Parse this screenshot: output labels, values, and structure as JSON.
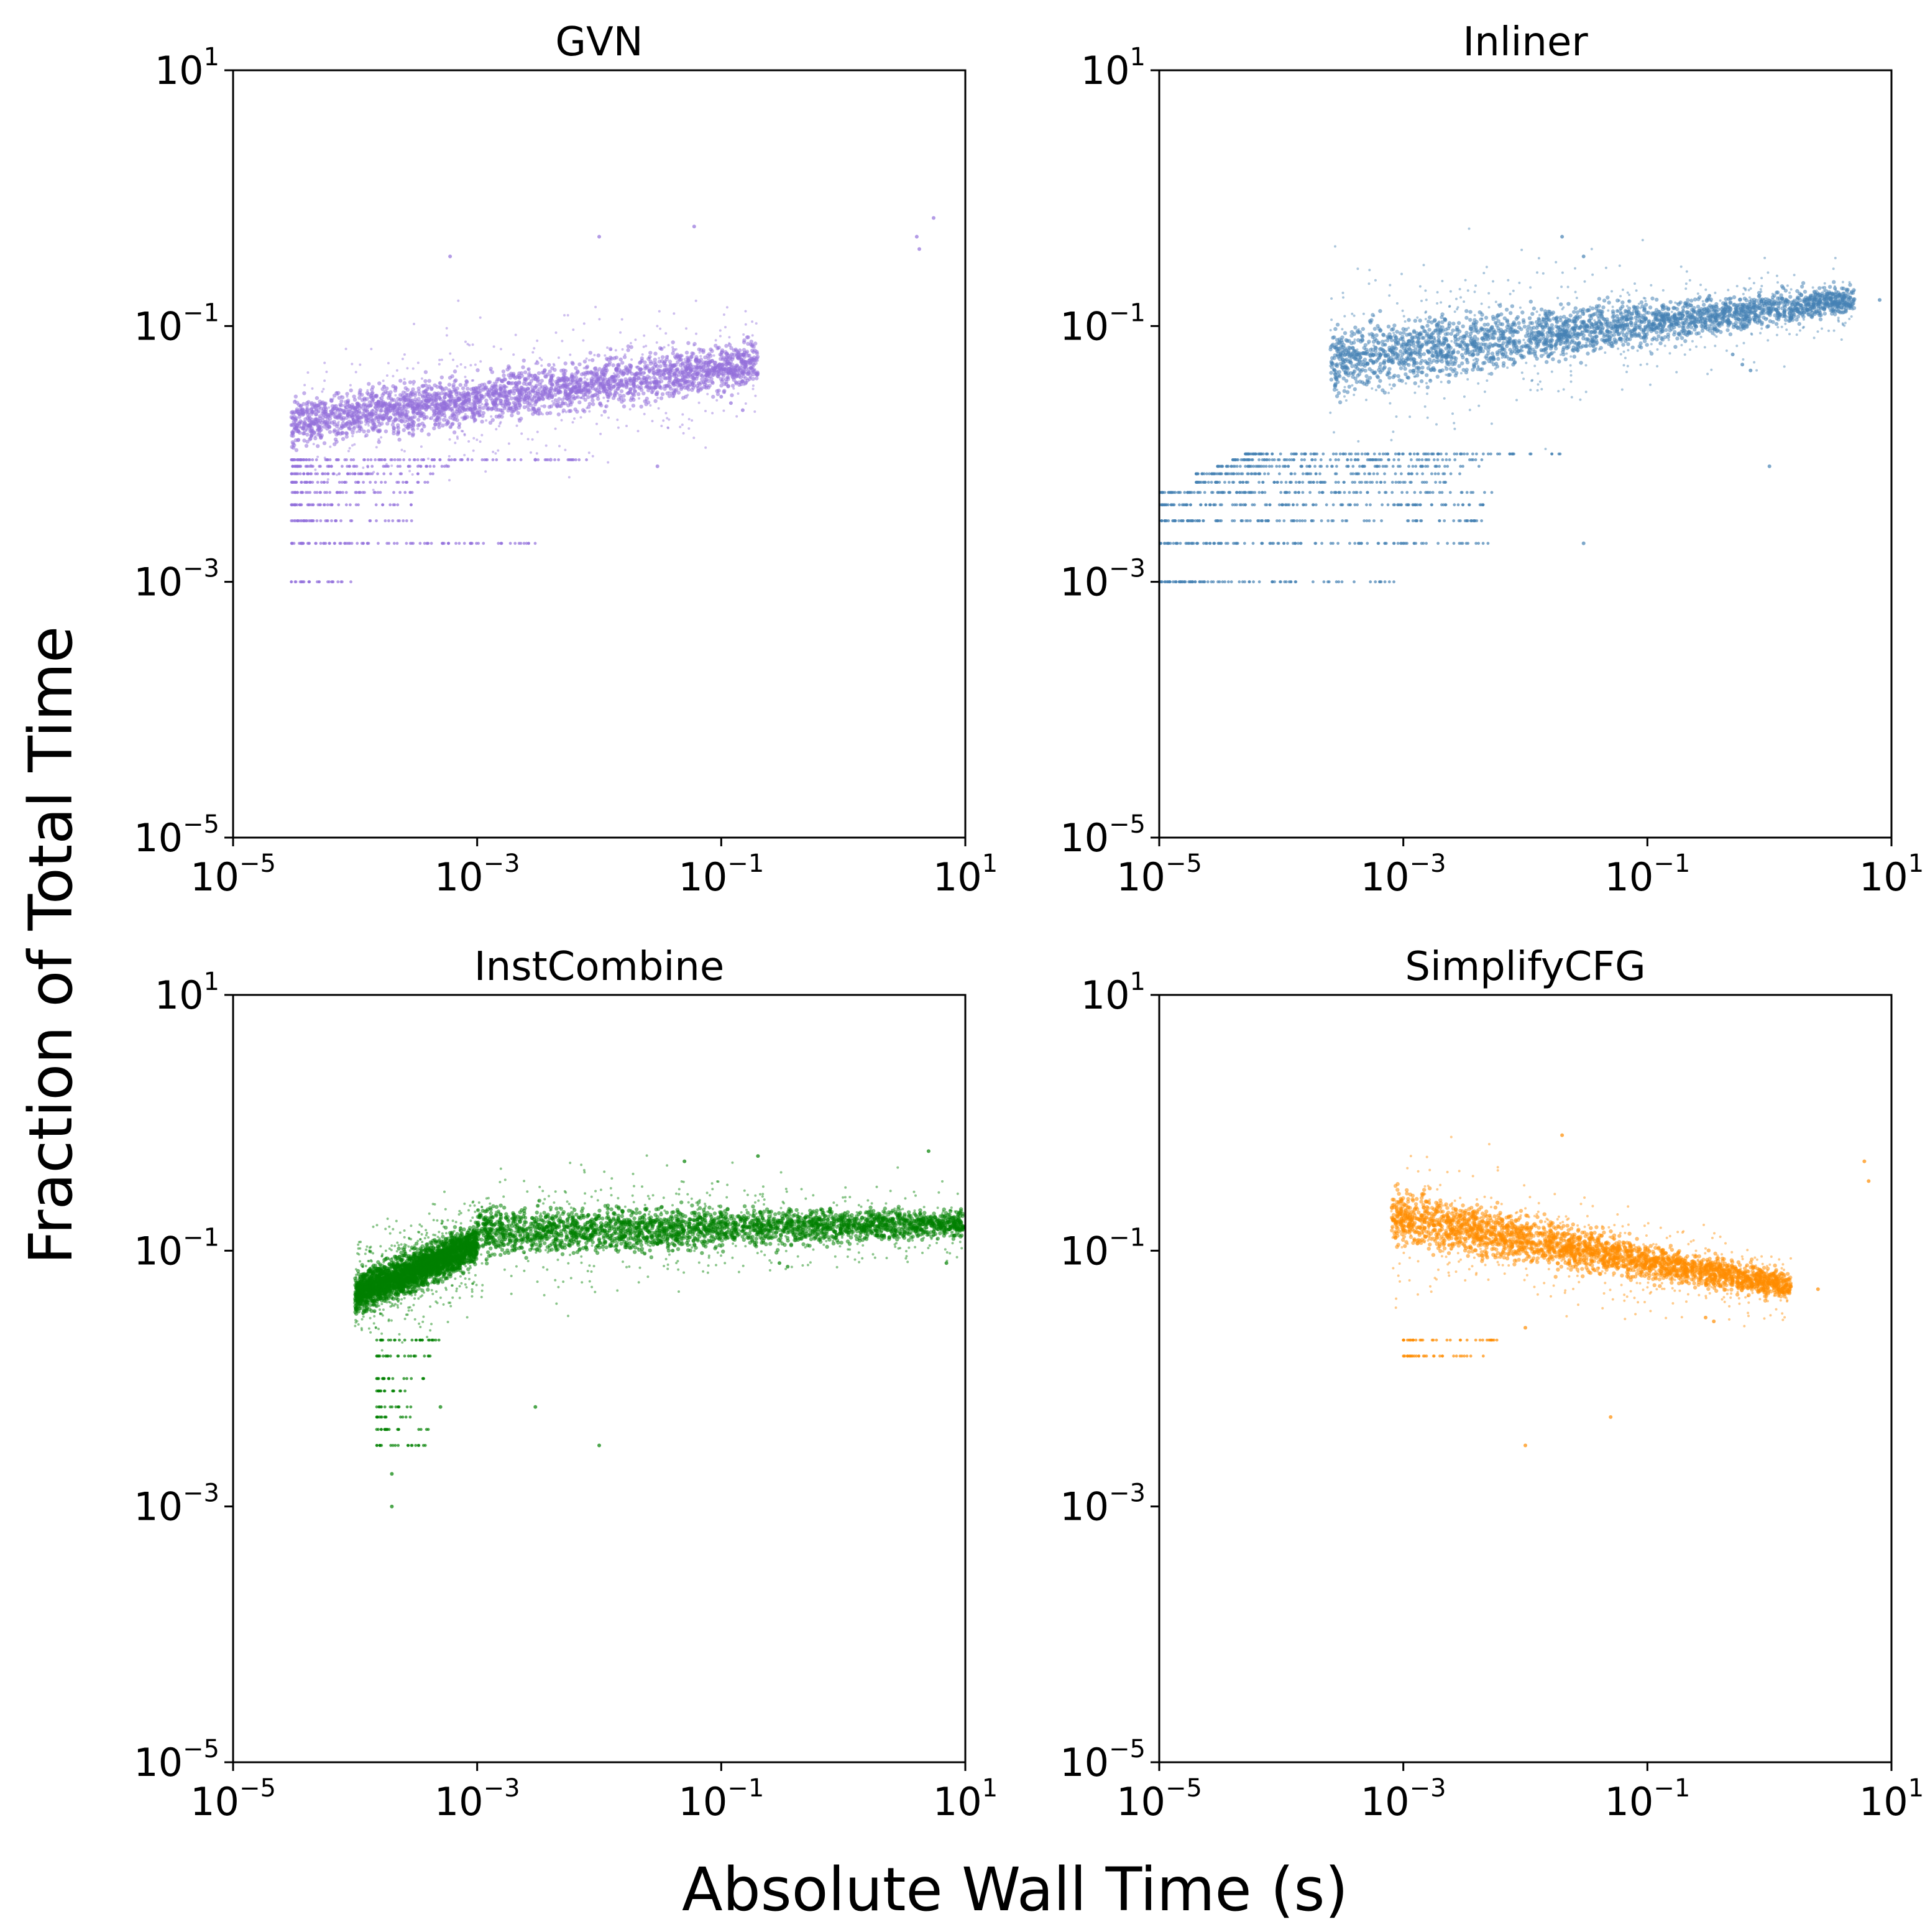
{
  "figure": {
    "xlabel": "Absolute Wall Time (s)",
    "ylabel": "Fraction of Total Time"
  },
  "chart_data": [
    {
      "type": "scatter",
      "title": "GVN",
      "color": "#9370DB",
      "xscale": "log",
      "yscale": "log",
      "xlim": [
        1e-05,
        10
      ],
      "ylim": [
        1e-05,
        10
      ],
      "xticks": [
        {
          "base": "10",
          "exp": "−5"
        },
        {
          "base": "10",
          "exp": "−3"
        },
        {
          "base": "10",
          "exp": "−1"
        },
        {
          "base": "10",
          "exp": "1"
        }
      ],
      "yticks": [
        {
          "base": "10",
          "exp": "−5"
        },
        {
          "base": "10",
          "exp": "−3"
        },
        {
          "base": "10",
          "exp": "−1"
        },
        {
          "base": "10",
          "exp": "1"
        }
      ],
      "clusters": [
        {
          "x_range": [
            3e-05,
            0.2
          ],
          "y_start": [
            0.01,
            0.03
          ],
          "y_end": [
            0.03,
            0.09
          ]
        }
      ],
      "bands": [
        {
          "y": 0.001,
          "x_range": [
            3e-05,
            0.0001
          ]
        },
        {
          "y": 0.002,
          "x_range": [
            3e-05,
            0.003
          ]
        },
        {
          "y": 0.003,
          "x_range": [
            3e-05,
            0.0003
          ]
        },
        {
          "y": 0.004,
          "x_range": [
            3e-05,
            0.0003
          ]
        },
        {
          "y": 0.005,
          "x_range": [
            3e-05,
            0.0003
          ]
        },
        {
          "y": 0.006,
          "x_range": [
            3e-05,
            0.0004
          ]
        },
        {
          "y": 0.007,
          "x_range": [
            3e-05,
            0.0005
          ]
        },
        {
          "y": 0.008,
          "x_range": [
            3e-05,
            0.0006
          ]
        },
        {
          "y": 0.009,
          "x_range": [
            3e-05,
            0.008
          ]
        }
      ],
      "points": [
        {
          "x": 4.0,
          "y": 0.5
        },
        {
          "x": 4.2,
          "y": 0.4
        },
        {
          "x": 5.5,
          "y": 0.7
        },
        {
          "x": 0.12,
          "y": 0.025
        },
        {
          "x": 0.15,
          "y": 0.022
        },
        {
          "x": 0.1,
          "y": 0.028
        },
        {
          "x": 0.0006,
          "y": 0.35
        },
        {
          "x": 0.01,
          "y": 0.5
        },
        {
          "x": 0.06,
          "y": 0.6
        },
        {
          "x": 0.003,
          "y": 0.009
        },
        {
          "x": 0.004,
          "y": 0.009
        },
        {
          "x": 0.03,
          "y": 0.008
        }
      ]
    },
    {
      "type": "scatter",
      "title": "Inliner",
      "color": "#4682B4",
      "xscale": "log",
      "yscale": "log",
      "xlim": [
        1e-05,
        10
      ],
      "ylim": [
        1e-05,
        10
      ],
      "xticks": [
        {
          "base": "10",
          "exp": "−5"
        },
        {
          "base": "10",
          "exp": "−3"
        },
        {
          "base": "10",
          "exp": "−1"
        },
        {
          "base": "10",
          "exp": "1"
        }
      ],
      "yticks": [
        {
          "base": "10",
          "exp": "−5"
        },
        {
          "base": "10",
          "exp": "−3"
        },
        {
          "base": "10",
          "exp": "−1"
        },
        {
          "base": "10",
          "exp": "1"
        }
      ],
      "clusters": [
        {
          "x_range": [
            0.00025,
            5.0
          ],
          "y_start": [
            0.025,
            0.12
          ],
          "y_end": [
            0.12,
            0.22
          ]
        }
      ],
      "bands": [
        {
          "y": 0.001,
          "x_range": [
            1e-05,
            0.001
          ]
        },
        {
          "y": 0.002,
          "x_range": [
            1e-05,
            0.005
          ]
        },
        {
          "y": 0.003,
          "x_range": [
            1e-05,
            0.005
          ]
        },
        {
          "y": 0.004,
          "x_range": [
            1e-05,
            0.006
          ]
        },
        {
          "y": 0.005,
          "x_range": [
            1e-05,
            0.006
          ]
        },
        {
          "y": 0.006,
          "x_range": [
            2e-05,
            0.003
          ]
        },
        {
          "y": 0.007,
          "x_range": [
            2e-05,
            0.003
          ]
        },
        {
          "y": 0.008,
          "x_range": [
            3e-05,
            0.005
          ]
        },
        {
          "y": 0.009,
          "x_range": [
            4e-05,
            0.005
          ]
        },
        {
          "y": 0.01,
          "x_range": [
            5e-05,
            0.02
          ]
        }
      ],
      "points": [
        {
          "x": 0.02,
          "y": 0.5
        },
        {
          "x": 0.03,
          "y": 0.35
        },
        {
          "x": 0.5,
          "y": 0.06
        },
        {
          "x": 0.6,
          "y": 0.05
        },
        {
          "x": 0.7,
          "y": 0.045
        },
        {
          "x": 8.0,
          "y": 0.16
        },
        {
          "x": 1.0,
          "y": 0.008
        },
        {
          "x": 0.03,
          "y": 0.002
        }
      ]
    },
    {
      "type": "scatter",
      "title": "InstCombine",
      "color": "#008000",
      "xscale": "log",
      "yscale": "log",
      "xlim": [
        1e-05,
        10
      ],
      "ylim": [
        1e-05,
        10
      ],
      "xticks": [
        {
          "base": "10",
          "exp": "−5"
        },
        {
          "base": "10",
          "exp": "−3"
        },
        {
          "base": "10",
          "exp": "−1"
        },
        {
          "base": "10",
          "exp": "1"
        }
      ],
      "yticks": [
        {
          "base": "10",
          "exp": "−5"
        },
        {
          "base": "10",
          "exp": "−3"
        },
        {
          "base": "10",
          "exp": "−1"
        },
        {
          "base": "10",
          "exp": "1"
        }
      ],
      "clusters": [
        {
          "x_range": [
            0.0001,
            0.001
          ],
          "y_start": [
            0.03,
            0.07
          ],
          "y_end": [
            0.07,
            0.18
          ]
        },
        {
          "x_range": [
            0.001,
            10.0
          ],
          "y_start": [
            0.08,
            0.25
          ],
          "y_end": [
            0.12,
            0.22
          ]
        }
      ],
      "bands": [
        {
          "y": 0.003,
          "x_range": [
            0.00015,
            0.0004
          ]
        },
        {
          "y": 0.004,
          "x_range": [
            0.00015,
            0.0004
          ]
        },
        {
          "y": 0.005,
          "x_range": [
            0.00015,
            0.0003
          ]
        },
        {
          "y": 0.006,
          "x_range": [
            0.00015,
            0.0003
          ]
        },
        {
          "y": 0.008,
          "x_range": [
            0.00015,
            0.0003
          ]
        },
        {
          "y": 0.01,
          "x_range": [
            0.00015,
            0.0004
          ]
        },
        {
          "y": 0.015,
          "x_range": [
            0.00015,
            0.0005
          ]
        },
        {
          "y": 0.02,
          "x_range": [
            0.00015,
            0.0006
          ]
        }
      ],
      "points": [
        {
          "x": 0.0002,
          "y": 0.001
        },
        {
          "x": 0.0002,
          "y": 0.0018
        },
        {
          "x": 0.01,
          "y": 0.003
        },
        {
          "x": 0.003,
          "y": 0.006
        },
        {
          "x": 0.0005,
          "y": 0.006
        },
        {
          "x": 0.05,
          "y": 0.5
        },
        {
          "x": 0.2,
          "y": 0.55
        },
        {
          "x": 5.0,
          "y": 0.6
        },
        {
          "x": 7.0,
          "y": 0.08
        },
        {
          "x": 0.3,
          "y": 0.08
        },
        {
          "x": 0.35,
          "y": 0.075
        },
        {
          "x": 0.04,
          "y": 0.1
        }
      ]
    },
    {
      "type": "scatter",
      "title": "SimplifyCFG",
      "color": "#FF8C00",
      "xscale": "log",
      "yscale": "log",
      "xlim": [
        1e-05,
        10
      ],
      "ylim": [
        1e-05,
        10
      ],
      "xticks": [
        {
          "base": "10",
          "exp": "−5"
        },
        {
          "base": "10",
          "exp": "−3"
        },
        {
          "base": "10",
          "exp": "−1"
        },
        {
          "base": "10",
          "exp": "1"
        }
      ],
      "yticks": [
        {
          "base": "10",
          "exp": "−5"
        },
        {
          "base": "10",
          "exp": "−3"
        },
        {
          "base": "10",
          "exp": "−1"
        },
        {
          "base": "10",
          "exp": "1"
        }
      ],
      "clusters": [
        {
          "x_range": [
            0.0008,
            1.5
          ],
          "y_start": [
            0.1,
            0.35
          ],
          "y_end": [
            0.04,
            0.07
          ]
        }
      ],
      "bands": [
        {
          "y": 0.02,
          "x_range": [
            0.001,
            0.006
          ]
        },
        {
          "y": 0.015,
          "x_range": [
            0.001,
            0.005
          ]
        }
      ],
      "points": [
        {
          "x": 0.01,
          "y": 0.003
        },
        {
          "x": 0.02,
          "y": 0.8
        },
        {
          "x": 6.0,
          "y": 0.5
        },
        {
          "x": 6.5,
          "y": 0.35
        },
        {
          "x": 2.5,
          "y": 0.05
        },
        {
          "x": 0.01,
          "y": 0.025
        },
        {
          "x": 0.3,
          "y": 0.03
        },
        {
          "x": 0.35,
          "y": 0.028
        },
        {
          "x": 0.05,
          "y": 0.005
        }
      ]
    }
  ]
}
